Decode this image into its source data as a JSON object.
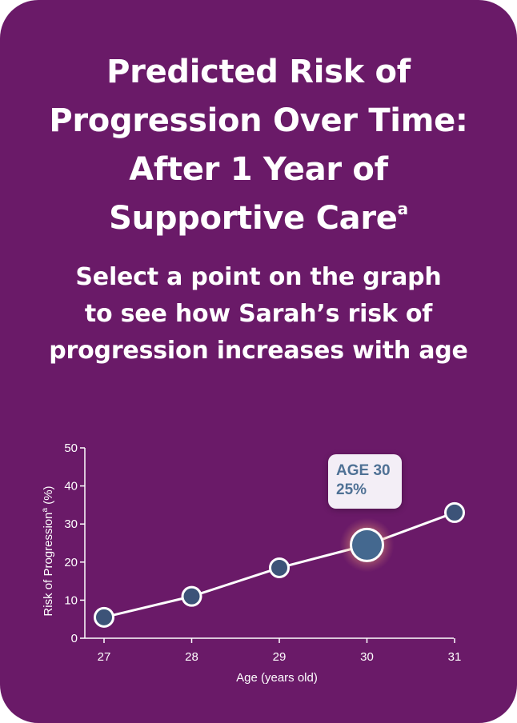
{
  "title_lines": [
    "Predicted Risk of",
    "Progression Over Time:",
    "After 1 Year of",
    "Supportive Care"
  ],
  "title_superscript": "a",
  "subtitle_lines": [
    "Select a point on the graph",
    "to see how Sarah’s risk of",
    "progression increases with age"
  ],
  "tooltip": {
    "line1": "AGE 30",
    "line2": "25%"
  },
  "colors": {
    "background": "#6a1a68",
    "point": "#3c5378",
    "selected_point": "#44688f",
    "tooltip_text": "#4f7195"
  },
  "chart_data": {
    "type": "line",
    "x": [
      27,
      28,
      29,
      30,
      31
    ],
    "values": [
      5.5,
      11,
      18.5,
      24.5,
      33
    ],
    "selected_x": 30,
    "xlabel": "Age (years old)",
    "ylabel": "Risk of Progression",
    "ylabel_superscript": "a",
    "ylabel_unit": " (%)",
    "xlim": [
      27,
      31
    ],
    "ylim": [
      0,
      50
    ],
    "yticks": [
      0,
      10,
      20,
      30,
      40,
      50
    ],
    "xticks": [
      27,
      28,
      29,
      30,
      31
    ],
    "grid": false
  }
}
